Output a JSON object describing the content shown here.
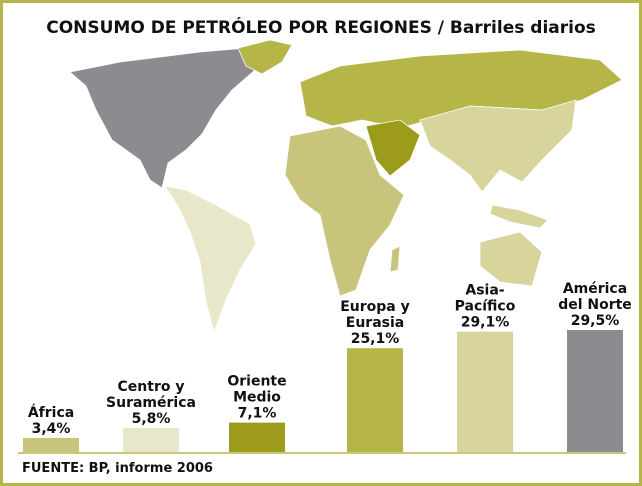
{
  "chart_data": {
    "type": "bar",
    "title": "CONSUMO DE PETRÓLEO POR REGIONES / Barriles diarios",
    "categories": [
      [
        "África"
      ],
      [
        "Centro y",
        "Suramérica"
      ],
      [
        "Oriente",
        "Medio"
      ],
      [
        "Europa y",
        "Eurasia"
      ],
      [
        "Asia-",
        "Pacífico"
      ],
      [
        "América",
        "del Norte"
      ]
    ],
    "values": [
      3.4,
      5.8,
      7.1,
      25.1,
      29.1,
      29.5
    ],
    "value_labels": [
      "3,4%",
      "5,8%",
      "7,1%",
      "25,1%",
      "29,1%",
      "29,5%"
    ],
    "colors": [
      "#c9c47c",
      "#e9e7c9",
      "#9c9b1c",
      "#b6b548",
      "#d7d59c",
      "#8c8c90"
    ],
    "source": "FUENTE: BP, informe 2006"
  }
}
